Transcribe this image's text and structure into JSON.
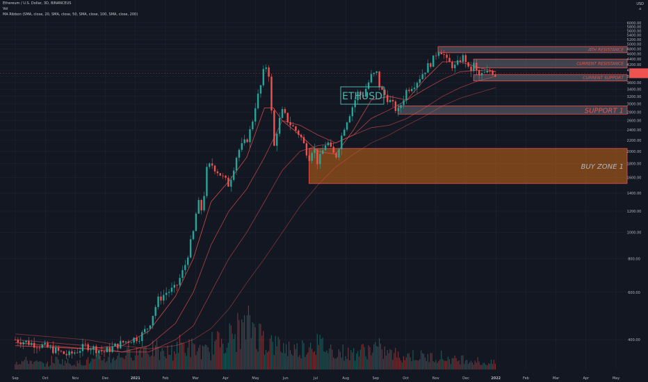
{
  "header": {
    "symbol_line": "Ethereum / U.S. Dollar, 3D, BINANCEUS",
    "vol_line": "Vol",
    "ma_line": "MA Ribbon (SMA, close, 20, SMA, close, 50, SMA, close, 100, SMA, close, 200)"
  },
  "badge": {
    "currency": "USD",
    "mark": "⌂"
  },
  "colors": {
    "background": "#131722",
    "grid": "#1f2432",
    "up": "#26a69a",
    "down": "#ef5350",
    "zone_fill": "rgba(120,123,134,0.45)",
    "zone_border": "#ef5350",
    "buy_zone_fill": "rgba(215,110,20,0.5)",
    "label_text": "#ef5350",
    "title_color": "#4db6ac",
    "price_tag": "#ef5350",
    "ma_color": "#ef5350"
  },
  "chart_data": {
    "type": "candlestick",
    "title": "ETHUSD",
    "y_axis": {
      "scale": "log",
      "ylim": [
        310,
        6400
      ],
      "ticks": [
        6000,
        5800,
        5600,
        5400,
        5200,
        5000,
        4800,
        4600,
        4400,
        4200,
        4000,
        3800,
        3600,
        3400,
        3200,
        3000,
        2800,
        2600,
        2400,
        2200,
        2000,
        1800,
        1600,
        1400,
        1200,
        1000,
        800,
        600,
        400
      ]
    },
    "x_axis": {
      "ticks": [
        "Sep",
        "Oct",
        "Nov",
        "Dec",
        "2021",
        "Feb",
        "Mar",
        "Apr",
        "May",
        "Jun",
        "Jul",
        "Aug",
        "Sep",
        "Oct",
        "Nov",
        "Dec",
        "2022",
        "Feb",
        "Mar",
        "Apr",
        "May"
      ]
    },
    "last_price": 3900,
    "price_path": [
      [
        0,
        400
      ],
      [
        3,
        380
      ],
      [
        6,
        350
      ],
      [
        8,
        380
      ],
      [
        10,
        360
      ],
      [
        12,
        390
      ],
      [
        14,
        410
      ],
      [
        15,
        450
      ],
      [
        16,
        560
      ],
      [
        17,
        600
      ],
      [
        18,
        620
      ],
      [
        19,
        740
      ],
      [
        20,
        1000
      ],
      [
        20.5,
        1300
      ],
      [
        21,
        1200
      ],
      [
        21.5,
        1700
      ],
      [
        22,
        1800
      ],
      [
        23,
        1650
      ],
      [
        24,
        1500
      ],
      [
        25,
        2000
      ],
      [
        26,
        2200
      ],
      [
        26.5,
        2450
      ],
      [
        27,
        3000
      ],
      [
        27.5,
        3400
      ],
      [
        28,
        4100
      ],
      [
        28.4,
        4200
      ],
      [
        28.7,
        3200
      ],
      [
        29,
        2000
      ],
      [
        29.5,
        2500
      ],
      [
        30,
        2800
      ],
      [
        31,
        2500
      ],
      [
        32,
        2300
      ],
      [
        33,
        1900
      ],
      [
        33.5,
        2100
      ],
      [
        34,
        1800
      ],
      [
        35,
        2200
      ],
      [
        35.5,
        2000
      ],
      [
        36,
        1900
      ],
      [
        37,
        2500
      ],
      [
        38,
        3000
      ],
      [
        38.5,
        3300
      ],
      [
        39,
        3200
      ],
      [
        40,
        3800
      ],
      [
        40.6,
        3900
      ],
      [
        41,
        3400
      ],
      [
        42,
        3100
      ],
      [
        43,
        2800
      ],
      [
        44,
        3400
      ],
      [
        45,
        3600
      ],
      [
        46,
        4000
      ],
      [
        47,
        4400
      ],
      [
        47.5,
        4800
      ],
      [
        48,
        4700
      ],
      [
        48.5,
        4300
      ],
      [
        49,
        4200
      ],
      [
        49.5,
        4100
      ],
      [
        50,
        4400
      ],
      [
        50.5,
        4500
      ],
      [
        51,
        3900
      ],
      [
        51.5,
        4200
      ],
      [
        52,
        3800
      ],
      [
        53,
        3900
      ],
      [
        53.5,
        4000
      ],
      [
        54,
        3850
      ]
    ],
    "moving_averages": [
      {
        "points": [
          [
            0,
            380
          ],
          [
            8,
            370
          ],
          [
            12,
            380
          ],
          [
            15,
            430
          ],
          [
            18,
            580
          ],
          [
            20,
            800
          ],
          [
            22,
            1300
          ],
          [
            24,
            1550
          ],
          [
            26,
            1900
          ],
          [
            28,
            2900
          ],
          [
            29,
            2900
          ],
          [
            30,
            2600
          ],
          [
            32,
            2300
          ],
          [
            34,
            2000
          ],
          [
            36,
            1950
          ],
          [
            38,
            2400
          ],
          [
            40,
            3100
          ],
          [
            42,
            3200
          ],
          [
            44,
            3100
          ],
          [
            46,
            3700
          ],
          [
            48,
            4300
          ],
          [
            50,
            4300
          ],
          [
            52,
            4100
          ],
          [
            54,
            3950
          ]
        ]
      },
      {
        "points": [
          [
            0,
            390
          ],
          [
            8,
            370
          ],
          [
            12,
            360
          ],
          [
            15,
            380
          ],
          [
            18,
            460
          ],
          [
            20,
            600
          ],
          [
            22,
            900
          ],
          [
            24,
            1200
          ],
          [
            26,
            1450
          ],
          [
            28,
            1900
          ],
          [
            30,
            2600
          ],
          [
            32,
            2500
          ],
          [
            34,
            2300
          ],
          [
            36,
            2150
          ],
          [
            38,
            2300
          ],
          [
            40,
            2650
          ],
          [
            42,
            2850
          ],
          [
            44,
            3100
          ],
          [
            46,
            3400
          ],
          [
            48,
            3700
          ],
          [
            50,
            3950
          ],
          [
            52,
            4000
          ],
          [
            54,
            3950
          ]
        ]
      },
      {
        "points": [
          [
            0,
            400
          ],
          [
            8,
            380
          ],
          [
            12,
            360
          ],
          [
            15,
            360
          ],
          [
            18,
            400
          ],
          [
            20,
            450
          ],
          [
            22,
            600
          ],
          [
            24,
            800
          ],
          [
            26,
            1000
          ],
          [
            28,
            1300
          ],
          [
            30,
            1700
          ],
          [
            32,
            2000
          ],
          [
            34,
            2100
          ],
          [
            36,
            2150
          ],
          [
            38,
            2300
          ],
          [
            40,
            2450
          ],
          [
            42,
            2500
          ],
          [
            44,
            2650
          ],
          [
            46,
            2900
          ],
          [
            48,
            3200
          ],
          [
            50,
            3450
          ],
          [
            52,
            3650
          ],
          [
            54,
            3800
          ]
        ]
      },
      {
        "points": [
          [
            0,
            420
          ],
          [
            8,
            400
          ],
          [
            12,
            380
          ],
          [
            15,
            370
          ],
          [
            18,
            380
          ],
          [
            20,
            400
          ],
          [
            22,
            440
          ],
          [
            24,
            520
          ],
          [
            26,
            650
          ],
          [
            28,
            800
          ],
          [
            30,
            1000
          ],
          [
            32,
            1250
          ],
          [
            34,
            1500
          ],
          [
            36,
            1750
          ],
          [
            38,
            1950
          ],
          [
            40,
            2150
          ],
          [
            42,
            2300
          ],
          [
            44,
            2500
          ],
          [
            46,
            2700
          ],
          [
            48,
            2950
          ],
          [
            50,
            3150
          ],
          [
            52,
            3300
          ],
          [
            54,
            3450
          ]
        ]
      }
    ],
    "zones": [
      {
        "label": "ATH RESISTANCE",
        "low": 4650,
        "high": 4900,
        "x0": 47.5,
        "style": "grey",
        "font": "small"
      },
      {
        "label": "CURRENT RESISTANCE",
        "low": 4080,
        "high": 4400,
        "x0": 51.5,
        "style": "grey",
        "font": "small"
      },
      {
        "label": "CURRENT SUPPORT",
        "low": 3650,
        "high": 3850,
        "x0": 51.5,
        "style": "grey",
        "font": "small"
      },
      {
        "label": "SUPPORT 1",
        "low": 2750,
        "high": 2950,
        "x0": 43,
        "style": "grey",
        "font": "large"
      },
      {
        "label": "BUY ZONE 1",
        "low": 1520,
        "high": 2050,
        "x0": 33,
        "style": "orange",
        "font": "large"
      }
    ],
    "volume_profile": [
      0.18,
      0.2,
      0.15,
      0.12,
      0.22,
      0.18,
      0.14,
      0.16,
      0.2,
      0.25,
      0.24,
      0.3,
      0.35,
      0.4,
      0.5,
      0.45,
      0.35,
      0.4,
      0.55,
      0.5,
      0.45,
      0.4,
      0.6,
      0.7,
      0.75,
      0.9,
      1.0,
      0.8,
      0.6,
      0.55,
      0.5,
      0.45,
      0.5,
      0.6,
      0.55,
      0.45,
      0.4,
      0.35,
      0.4,
      0.45,
      0.5,
      0.4,
      0.35,
      0.3,
      0.32,
      0.3,
      0.28,
      0.3,
      0.25,
      0.22,
      0.25,
      0.2,
      0.15
    ]
  }
}
